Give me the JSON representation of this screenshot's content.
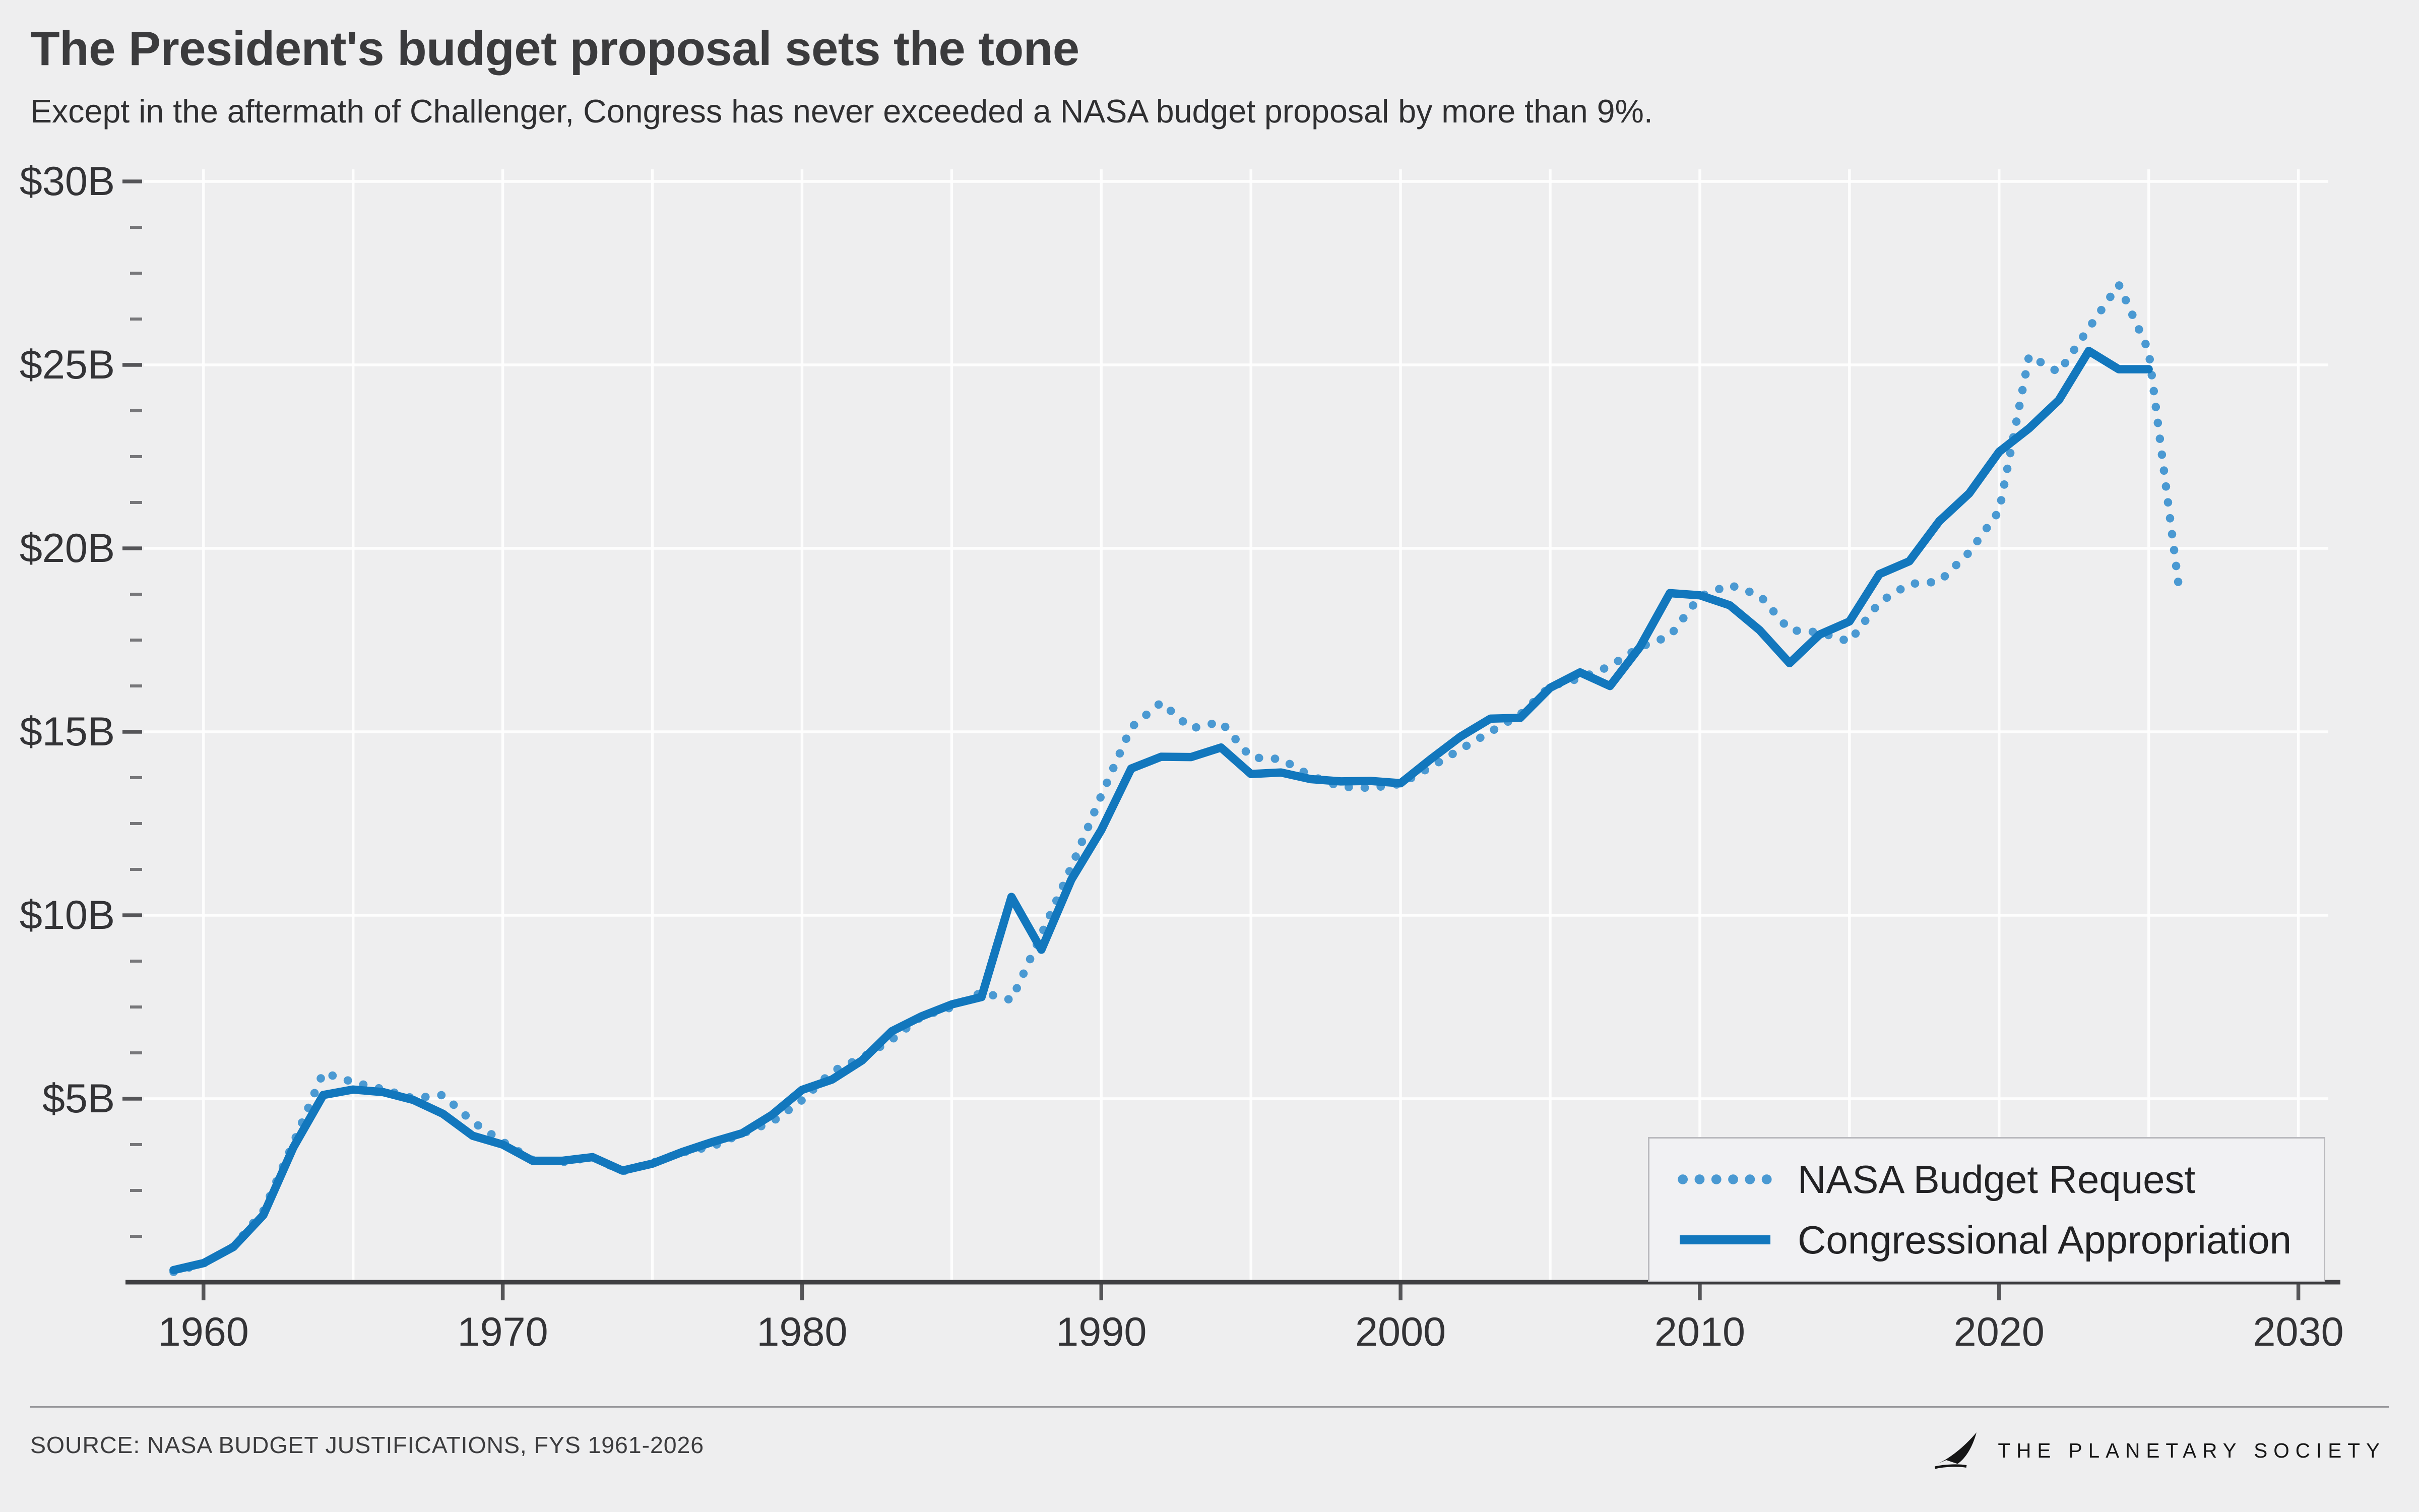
{
  "header": {
    "title": "The President's budget proposal sets the tone",
    "subtitle": "Except in the aftermath of Challenger, Congress has never exceeded a NASA budget proposal by more than 9%."
  },
  "footer": {
    "source": "SOURCE: NASA BUDGET JUSTIFICATIONS, FYS 1961-2026",
    "brand": "THE PLANETARY SOCIETY"
  },
  "colors": {
    "background": "#eeeeef",
    "grid": "#ffffff",
    "axis": "#3f3f42",
    "tick": "#555558",
    "title_text": "#3b3b3d",
    "request_blue": "#4a99d2",
    "appropriation_blue": "#1277bd"
  },
  "chart_data": {
    "type": "line",
    "title": "The President's budget proposal sets the tone",
    "subtitle": "Except in the aftermath of Challenger, Congress has never exceeded a NASA budget proposal by more than 9%.",
    "xlabel": "",
    "ylabel": "",
    "x_range": [
      1958,
      2031
    ],
    "y_range": [
      0,
      30
    ],
    "x_ticks": [
      1960,
      1970,
      1980,
      1990,
      2000,
      2010,
      2020,
      2030
    ],
    "x_grid_step": 5,
    "y_minor_step": 1.25,
    "grid": true,
    "legend_position": "bottom-right",
    "y_ticks": [
      {
        "value": 5,
        "label": "$5B"
      },
      {
        "value": 10,
        "label": "$10B"
      },
      {
        "value": 15,
        "label": "$15B"
      },
      {
        "value": 20,
        "label": "$20B"
      },
      {
        "value": 25,
        "label": "$25B"
      },
      {
        "value": 30,
        "label": "$30B"
      }
    ],
    "series": [
      {
        "name": "NASA Budget Request",
        "style": "dotted",
        "color": "#4a99d2",
        "start_year": 1959,
        "values": [
          0.28,
          0.51,
          0.97,
          1.94,
          3.79,
          5.71,
          5.45,
          5.26,
          5.01,
          5.1,
          4.37,
          3.83,
          3.33,
          3.27,
          3.41,
          3.02,
          3.25,
          3.54,
          3.7,
          4.05,
          4.37,
          4.96,
          5.74,
          6.12,
          6.61,
          7.25,
          7.49,
          7.9,
          7.69,
          9.48,
          11.31,
          13.26,
          15.12,
          15.8,
          15.09,
          15.27,
          14.3,
          14.26,
          13.8,
          13.5,
          13.47,
          13.58,
          14.04,
          14.52,
          15.0,
          15.47,
          16.24,
          16.46,
          16.79,
          17.31,
          17.61,
          18.69,
          19.0,
          18.72,
          17.77,
          17.71,
          17.46,
          18.53,
          19.03,
          19.09,
          19.89,
          21.02,
          25.25,
          24.8,
          26.0,
          27.19,
          25.38,
          18.99
        ]
      },
      {
        "name": "Congressional Appropriation",
        "style": "solid",
        "color": "#1277bd",
        "start_year": 1959,
        "values": [
          0.33,
          0.52,
          0.96,
          1.83,
          3.67,
          5.1,
          5.25,
          5.18,
          4.97,
          4.59,
          3.99,
          3.75,
          3.31,
          3.31,
          3.41,
          3.04,
          3.23,
          3.55,
          3.82,
          4.06,
          4.56,
          5.24,
          5.52,
          6.04,
          6.84,
          7.25,
          7.57,
          7.77,
          10.5,
          9.06,
          10.97,
          12.32,
          14.0,
          14.32,
          14.31,
          14.57,
          13.85,
          13.89,
          13.71,
          13.65,
          13.66,
          13.6,
          14.25,
          14.87,
          15.36,
          15.38,
          16.2,
          16.62,
          16.25,
          17.31,
          18.78,
          18.72,
          18.45,
          17.77,
          16.87,
          17.65,
          18.01,
          19.3,
          19.65,
          20.74,
          21.5,
          22.63,
          23.27,
          24.04,
          25.38,
          24.88,
          24.88
        ]
      }
    ]
  }
}
